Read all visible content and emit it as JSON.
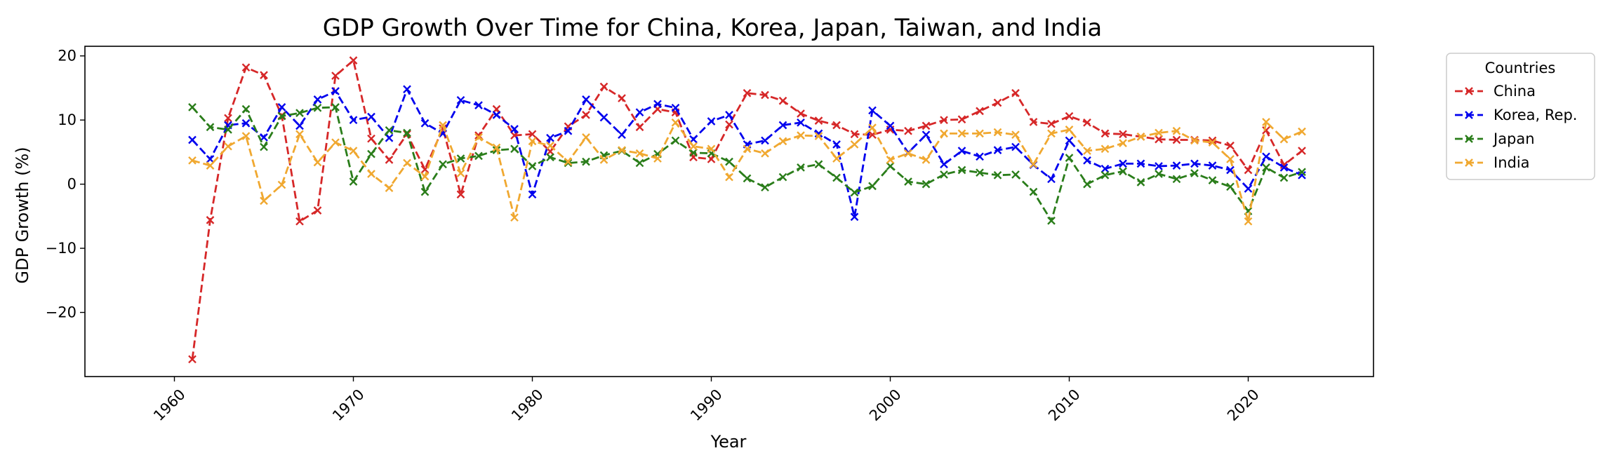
{
  "chart_data": {
    "type": "line",
    "title": "GDP Growth Over Time for China, Korea, Japan, Taiwan, and India",
    "xlabel": "Year",
    "ylabel": "GDP Growth (%)",
    "xlim": [
      1955,
      2027
    ],
    "ylim": [
      -30,
      21.5
    ],
    "x_ticks": [
      1960,
      1970,
      1980,
      1990,
      2000,
      2010,
      2020
    ],
    "y_ticks": [
      -20,
      -10,
      0,
      10,
      20
    ],
    "y_tick_labels": [
      "−20",
      "−10",
      "0",
      "10",
      "20"
    ],
    "grid": false,
    "legend": {
      "title": "Countries",
      "position": "outside-top-right"
    },
    "x": [
      1961,
      1962,
      1963,
      1964,
      1965,
      1966,
      1967,
      1968,
      1969,
      1970,
      1971,
      1972,
      1973,
      1974,
      1975,
      1976,
      1977,
      1978,
      1979,
      1980,
      1981,
      1982,
      1983,
      1984,
      1985,
      1986,
      1987,
      1988,
      1989,
      1990,
      1991,
      1992,
      1993,
      1994,
      1995,
      1996,
      1997,
      1998,
      1999,
      2000,
      2001,
      2002,
      2003,
      2004,
      2005,
      2006,
      2007,
      2008,
      2009,
      2010,
      2011,
      2012,
      2013,
      2014,
      2015,
      2016,
      2017,
      2018,
      2019,
      2020,
      2021,
      2022,
      2023
    ],
    "series": [
      {
        "name": "China",
        "color": "#d62728",
        "values": [
          -27.3,
          -5.6,
          10.3,
          18.2,
          17.0,
          10.7,
          -5.8,
          -4.1,
          16.9,
          19.3,
          7.1,
          3.8,
          7.8,
          2.3,
          8.7,
          -1.6,
          7.6,
          11.7,
          7.6,
          7.8,
          5.1,
          9.0,
          10.8,
          15.2,
          13.4,
          8.9,
          11.7,
          11.2,
          4.2,
          3.9,
          9.3,
          14.2,
          13.9,
          13.0,
          11.0,
          9.9,
          9.2,
          7.8,
          7.7,
          8.5,
          8.3,
          9.1,
          10.0,
          10.1,
          11.4,
          12.7,
          14.2,
          9.7,
          9.4,
          10.6,
          9.6,
          7.9,
          7.8,
          7.4,
          7.0,
          6.9,
          6.9,
          6.8,
          6.0,
          2.2,
          8.4,
          3.0,
          5.2
        ]
      },
      {
        "name": "Korea, Rep.",
        "color": "#0000ee",
        "values": [
          6.9,
          3.9,
          9.2,
          9.5,
          7.3,
          12.0,
          9.1,
          13.2,
          14.5,
          10.0,
          10.5,
          7.2,
          14.8,
          9.5,
          7.9,
          13.1,
          12.3,
          10.8,
          8.6,
          -1.6,
          7.2,
          8.3,
          13.2,
          10.4,
          7.7,
          11.2,
          12.5,
          11.9,
          7.0,
          9.8,
          10.8,
          6.2,
          6.8,
          9.2,
          9.6,
          7.9,
          6.2,
          -5.1,
          11.5,
          9.1,
          4.9,
          7.7,
          3.1,
          5.2,
          4.3,
          5.3,
          5.8,
          3.0,
          0.8,
          6.8,
          3.7,
          2.4,
          3.2,
          3.2,
          2.8,
          2.9,
          3.2,
          2.9,
          2.2,
          -0.7,
          4.3,
          2.6,
          1.4
        ]
      },
      {
        "name": "Japan",
        "color": "#2a7d1a",
        "values": [
          12.0,
          8.9,
          8.5,
          11.7,
          5.8,
          10.6,
          11.1,
          11.9,
          12.0,
          0.4,
          4.7,
          8.4,
          8.0,
          -1.2,
          3.1,
          4.0,
          4.4,
          5.3,
          5.5,
          2.8,
          4.2,
          3.3,
          3.5,
          4.5,
          5.2,
          3.3,
          4.7,
          6.8,
          4.9,
          4.8,
          3.5,
          0.9,
          -0.5,
          1.1,
          2.6,
          3.1,
          1.0,
          -1.3,
          -0.3,
          2.8,
          0.4,
          0.0,
          1.5,
          2.2,
          1.8,
          1.4,
          1.5,
          -1.2,
          -5.7,
          4.1,
          0.0,
          1.4,
          2.0,
          0.3,
          1.6,
          0.8,
          1.7,
          0.6,
          -0.4,
          -4.2,
          2.6,
          1.0,
          1.9
        ]
      },
      {
        "name": "India",
        "color": "#f0a830",
        "values": [
          3.7,
          2.9,
          5.9,
          7.5,
          -2.6,
          -0.1,
          7.8,
          3.4,
          6.5,
          5.2,
          1.6,
          -0.6,
          3.3,
          1.2,
          9.2,
          1.7,
          7.3,
          5.7,
          -5.2,
          6.7,
          6.0,
          3.5,
          7.3,
          3.8,
          5.3,
          4.8,
          4.0,
          9.6,
          5.9,
          5.5,
          1.1,
          5.5,
          4.8,
          6.7,
          7.6,
          7.5,
          4.0,
          6.2,
          8.8,
          3.8,
          4.8,
          3.8,
          7.9,
          7.9,
          7.9,
          8.1,
          7.7,
          3.1,
          7.9,
          8.5,
          5.2,
          5.5,
          6.4,
          7.4,
          8.0,
          8.3,
          6.8,
          6.5,
          3.9,
          -5.8,
          9.7,
          7.0,
          8.2
        ]
      }
    ]
  }
}
